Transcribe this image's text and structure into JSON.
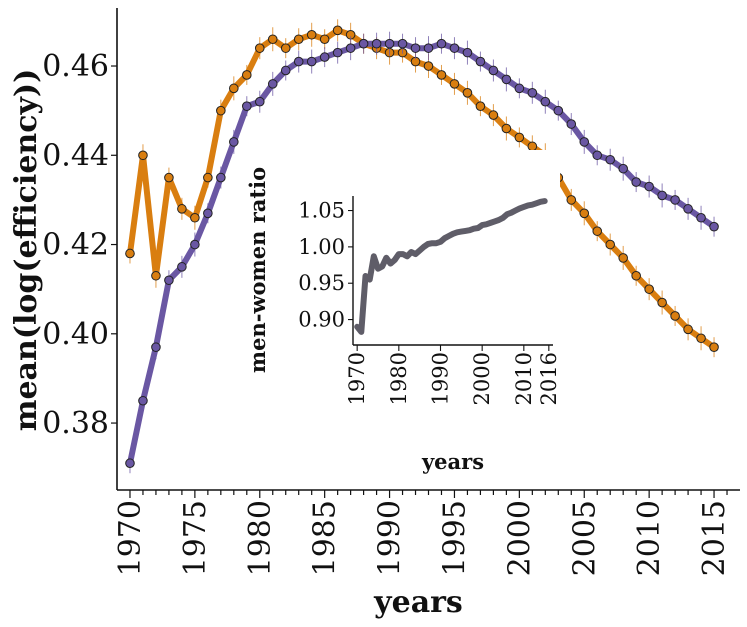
{
  "chart_data": [
    {
      "type": "line",
      "xlabel": "years",
      "ylabel": "mean(log(efficiency))",
      "xlim": [
        1969,
        2017
      ],
      "ylim": [
        0.365,
        0.473
      ],
      "xticks": [
        1970,
        1975,
        1980,
        1985,
        1990,
        1995,
        2000,
        2005,
        2010,
        2015
      ],
      "xtick_labels": [
        "1970",
        "1975",
        "1980",
        "1985",
        "1990",
        "1995",
        "2000",
        "2005",
        "2010",
        "2015"
      ],
      "yticks": [
        0.38,
        0.4,
        0.42,
        0.44,
        0.46
      ],
      "ytick_labels": [
        "0.38",
        "0.40",
        "0.42",
        "0.44",
        "0.46"
      ],
      "series": [
        {
          "name": "orange",
          "color": "#d97e10",
          "x": [
            1970,
            1971,
            1972,
            1973,
            1974,
            1975,
            1976,
            1977,
            1978,
            1979,
            1980,
            1981,
            1982,
            1983,
            1984,
            1985,
            1986,
            1987,
            1988,
            1989,
            1990,
            1991,
            1992,
            1993,
            1994,
            1995,
            1996,
            1997,
            1998,
            1999,
            2000,
            2001,
            2002,
            2003,
            2004,
            2005,
            2006,
            2007,
            2008,
            2009,
            2010,
            2011,
            2012,
            2013,
            2014,
            2015
          ],
          "values": [
            0.418,
            0.44,
            0.413,
            0.435,
            0.428,
            0.426,
            0.435,
            0.45,
            0.455,
            0.458,
            0.464,
            0.466,
            0.464,
            0.466,
            0.467,
            0.466,
            0.468,
            0.467,
            0.465,
            0.464,
            0.463,
            0.463,
            0.461,
            0.46,
            0.458,
            0.456,
            0.454,
            0.451,
            0.449,
            0.446,
            0.444,
            0.442,
            0.44,
            0.435,
            0.43,
            0.427,
            0.423,
            0.42,
            0.417,
            0.413,
            0.41,
            0.407,
            0.404,
            0.401,
            0.399,
            0.397
          ]
        },
        {
          "name": "purple",
          "color": "#6a57a3",
          "x": [
            1970,
            1971,
            1972,
            1973,
            1974,
            1975,
            1976,
            1977,
            1978,
            1979,
            1980,
            1981,
            1982,
            1983,
            1984,
            1985,
            1986,
            1987,
            1988,
            1989,
            1990,
            1991,
            1992,
            1993,
            1994,
            1995,
            1996,
            1997,
            1998,
            1999,
            2000,
            2001,
            2002,
            2003,
            2004,
            2005,
            2006,
            2007,
            2008,
            2009,
            2010,
            2011,
            2012,
            2013,
            2014,
            2015
          ],
          "values": [
            0.371,
            0.385,
            0.397,
            0.412,
            0.415,
            0.42,
            0.427,
            0.435,
            0.443,
            0.451,
            0.452,
            0.456,
            0.459,
            0.461,
            0.461,
            0.462,
            0.463,
            0.464,
            0.465,
            0.465,
            0.465,
            0.465,
            0.464,
            0.464,
            0.465,
            0.464,
            0.463,
            0.461,
            0.459,
            0.457,
            0.455,
            0.454,
            0.452,
            0.45,
            0.447,
            0.443,
            0.44,
            0.439,
            0.437,
            0.434,
            0.433,
            0.431,
            0.43,
            0.428,
            0.426,
            0.424
          ]
        }
      ]
    },
    {
      "type": "line",
      "xlabel": "years",
      "ylabel": "men-women ratio",
      "xlim": [
        1969,
        2017
      ],
      "ylim": [
        0.865,
        1.07
      ],
      "xticks": [
        1970,
        1980,
        1990,
        2000,
        2010,
        2016
      ],
      "xtick_labels": [
        "1970",
        "1980",
        "1990",
        "2000",
        "2010",
        "2016"
      ],
      "yticks": [
        0.9,
        0.95,
        1.0,
        1.05
      ],
      "ytick_labels": [
        "0.90",
        "0.95",
        "1.00",
        "1.05"
      ],
      "series": [
        {
          "name": "ratio",
          "color": "#5f5d68",
          "x": [
            1970,
            1971,
            1972,
            1973,
            1974,
            1975,
            1976,
            1977,
            1978,
            1979,
            1980,
            1981,
            1982,
            1983,
            1984,
            1985,
            1986,
            1987,
            1988,
            1989,
            1990,
            1991,
            1992,
            1993,
            1994,
            1995,
            1996,
            1997,
            1998,
            1999,
            2000,
            2001,
            2002,
            2003,
            2004,
            2005,
            2006,
            2007,
            2008,
            2009,
            2010,
            2011,
            2012,
            2013,
            2014,
            2015
          ],
          "values": [
            0.89,
            0.883,
            0.96,
            0.955,
            0.987,
            0.97,
            0.973,
            0.985,
            0.977,
            0.982,
            0.99,
            0.99,
            0.987,
            0.993,
            0.99,
            0.995,
            1.0,
            1.004,
            1.005,
            1.005,
            1.007,
            1.012,
            1.015,
            1.018,
            1.02,
            1.021,
            1.022,
            1.023,
            1.025,
            1.026,
            1.03,
            1.031,
            1.033,
            1.035,
            1.037,
            1.04,
            1.045,
            1.047,
            1.05,
            1.053,
            1.055,
            1.057,
            1.058,
            1.06,
            1.062,
            1.063
          ]
        }
      ]
    }
  ]
}
